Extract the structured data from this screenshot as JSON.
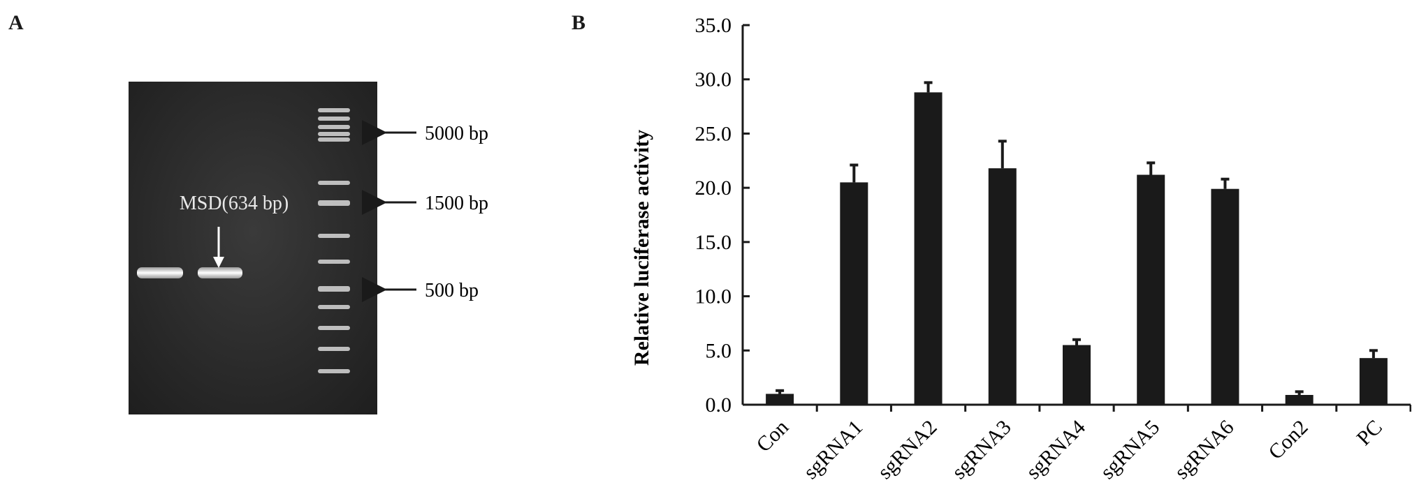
{
  "panels": {
    "a_label": "A",
    "b_label": "B"
  },
  "gel": {
    "band_label": "MSD(634 bp)",
    "ladder_markers": [
      "5000 bp",
      "1500 bp",
      "500 bp"
    ]
  },
  "colors": {
    "bar": "#1a1a1a",
    "gel_background": "#2b2b2b",
    "gel_band": "#f2f2f2"
  },
  "chart_data": {
    "type": "bar",
    "title": "",
    "xlabel": "",
    "ylabel": "Relative luciferase activity",
    "ylim": [
      0,
      35
    ],
    "yticks": [
      "0.0",
      "5.0",
      "10.0",
      "15.0",
      "20.0",
      "25.0",
      "30.0",
      "35.0"
    ],
    "categories": [
      "Con",
      "sgRNA1",
      "sgRNA2",
      "sgRNA3",
      "sgRNA4",
      "sgRNA5",
      "sgRNA6",
      "Con2",
      "PC"
    ],
    "values": [
      1.0,
      20.5,
      28.8,
      21.8,
      5.5,
      21.2,
      19.9,
      0.9,
      4.3
    ],
    "errors": [
      0.3,
      1.6,
      0.9,
      2.5,
      0.5,
      1.1,
      0.9,
      0.3,
      0.7
    ],
    "grid": false
  }
}
